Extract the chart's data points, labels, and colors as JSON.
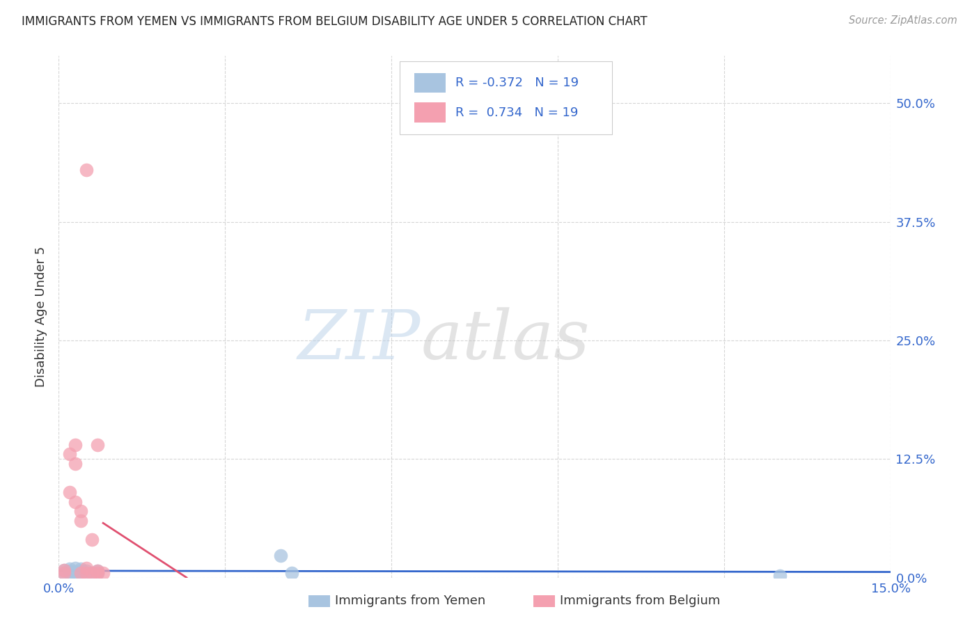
{
  "title": "IMMIGRANTS FROM YEMEN VS IMMIGRANTS FROM BELGIUM DISABILITY AGE UNDER 5 CORRELATION CHART",
  "source": "Source: ZipAtlas.com",
  "ylabel": "Disability Age Under 5",
  "watermark_zip": "ZIP",
  "watermark_atlas": "atlas",
  "legend_entry1": "R = -0.372   N = 19",
  "legend_entry2": "R =  0.734   N = 19",
  "legend_label1": "Immigrants from Yemen",
  "legend_label2": "Immigrants from Belgium",
  "color_yemen": "#a8c4e0",
  "color_belgium": "#f4a0b0",
  "trendline_yemen": "#3366cc",
  "trendline_belgium": "#e05070",
  "trendline_dashed_color": "#e8a0b8",
  "xlim": [
    0.0,
    0.15
  ],
  "ylim": [
    0.0,
    0.55
  ],
  "xtick_vals": [
    0.0,
    0.03,
    0.06,
    0.09,
    0.12,
    0.15
  ],
  "ytick_labels": [
    "0.0%",
    "12.5%",
    "25.0%",
    "37.5%",
    "50.0%"
  ],
  "ytick_vals": [
    0.0,
    0.125,
    0.25,
    0.375,
    0.5
  ],
  "xtick_labels": [
    "0.0%",
    "",
    "",
    "",
    "",
    "15.0%"
  ],
  "background_color": "#ffffff",
  "yemen_x": [
    0.001,
    0.001,
    0.002,
    0.002,
    0.002,
    0.003,
    0.003,
    0.003,
    0.004,
    0.004,
    0.004,
    0.005,
    0.005,
    0.006,
    0.007,
    0.007,
    0.04,
    0.042,
    0.13
  ],
  "yemen_y": [
    0.005,
    0.008,
    0.005,
    0.007,
    0.009,
    0.004,
    0.006,
    0.01,
    0.005,
    0.007,
    0.009,
    0.004,
    0.007,
    0.005,
    0.005,
    0.007,
    0.023,
    0.005,
    0.002
  ],
  "belgium_x": [
    0.001,
    0.001,
    0.002,
    0.002,
    0.003,
    0.003,
    0.003,
    0.004,
    0.004,
    0.004,
    0.005,
    0.005,
    0.005,
    0.006,
    0.006,
    0.007,
    0.007,
    0.007,
    0.008
  ],
  "belgium_y": [
    0.005,
    0.008,
    0.13,
    0.09,
    0.14,
    0.12,
    0.08,
    0.005,
    0.06,
    0.07,
    0.43,
    0.005,
    0.01,
    0.04,
    0.005,
    0.14,
    0.005,
    0.007,
    0.005
  ],
  "belgium_trendline_x0": 0.0,
  "belgium_trendline_x1": 0.009,
  "belgium_trendline_dashed_x0": 0.009,
  "belgium_trendline_dashed_x1": 0.021
}
